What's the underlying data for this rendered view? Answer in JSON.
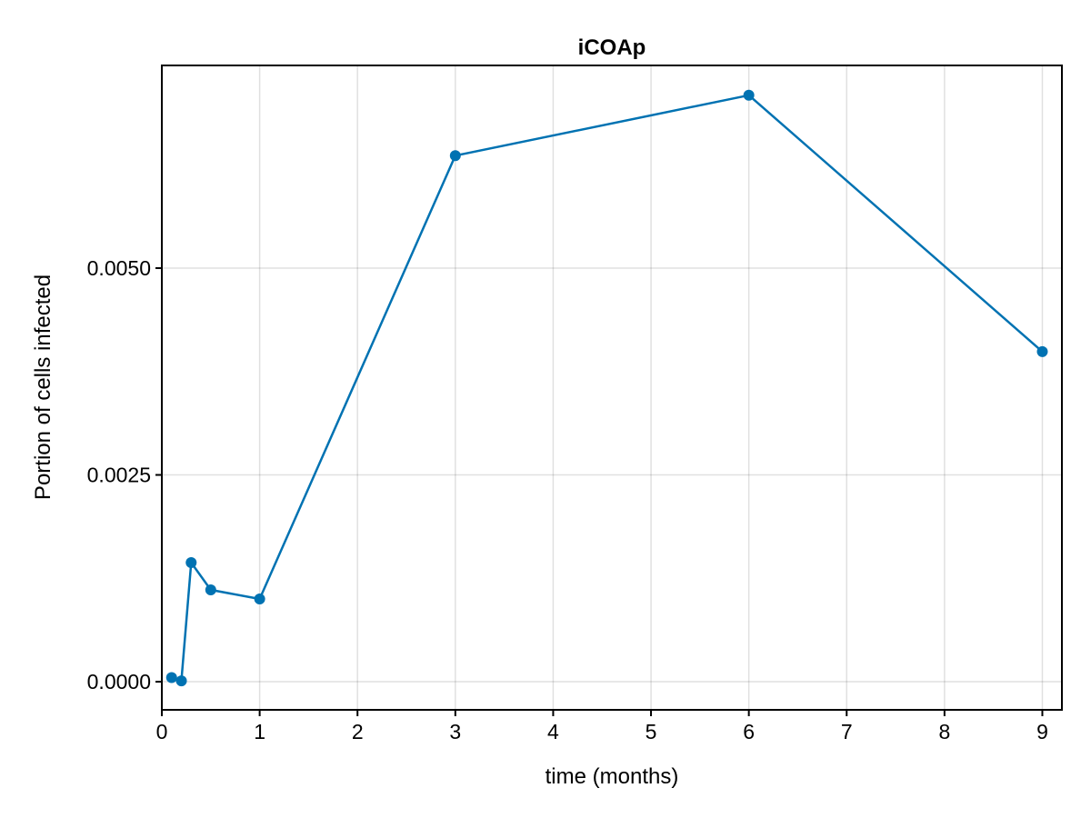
{
  "chart_data": {
    "type": "line",
    "title": "iCOAp",
    "xlabel": "time (months)",
    "ylabel": "Portion of cells infected",
    "xlim": [
      0,
      9.2
    ],
    "ylim": [
      -0.00034,
      0.00745
    ],
    "xticks": [
      0,
      1,
      2,
      3,
      4,
      5,
      6,
      7,
      8,
      9
    ],
    "xtick_labels": [
      "0",
      "1",
      "2",
      "3",
      "4",
      "5",
      "6",
      "7",
      "8",
      "9"
    ],
    "yticks": [
      0,
      0.0025,
      0.005
    ],
    "ytick_labels": [
      "0.0000",
      "0.0025",
      "0.0050"
    ],
    "grid": true,
    "series": [
      {
        "color": "#0072b2",
        "x": [
          0.1,
          0.2,
          0.3,
          0.5,
          1,
          3,
          6,
          9
        ],
        "y": [
          5e-05,
          1e-05,
          0.00144,
          0.00111,
          0.001,
          0.00636,
          0.00709,
          0.00399
        ]
      }
    ]
  }
}
